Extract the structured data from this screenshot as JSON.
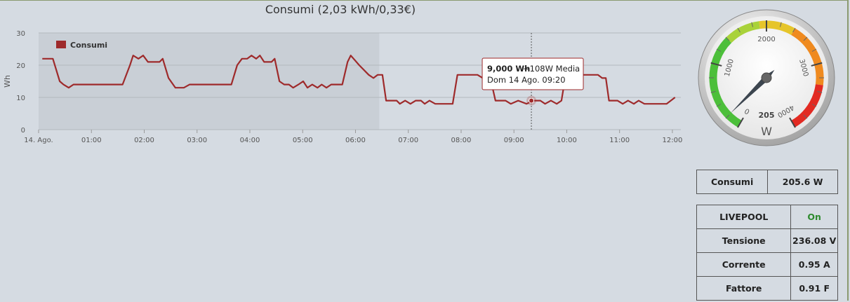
{
  "chart_data": {
    "type": "line",
    "title": "Consumi (2,03 kWh/0,33€)",
    "y_label": "Wh",
    "ylim": [
      0,
      30
    ],
    "yticks": [
      0,
      10,
      20,
      30
    ],
    "grid": true,
    "xlim": [
      0,
      12.2
    ],
    "xticks": [
      {
        "value": 0,
        "label": "14. Ago."
      },
      {
        "value": 1,
        "label": "01:00"
      },
      {
        "value": 2,
        "label": "02:00"
      },
      {
        "value": 3,
        "label": "03:00"
      },
      {
        "value": 4,
        "label": "04:00"
      },
      {
        "value": 5,
        "label": "05:00"
      },
      {
        "value": 6,
        "label": "06:00"
      },
      {
        "value": 7,
        "label": "07:00"
      },
      {
        "value": 8,
        "label": "08:00"
      },
      {
        "value": 9,
        "label": "09:00"
      },
      {
        "value": 10,
        "label": "10:00"
      },
      {
        "value": 11,
        "label": "11:00"
      },
      {
        "value": 12,
        "label": "12:00"
      }
    ],
    "plot_band": [
      0,
      6.45
    ],
    "legend": "top-left",
    "x": [
      0.07,
      0.27,
      0.4,
      0.47,
      0.57,
      0.66,
      1.59,
      1.73,
      1.79,
      1.89,
      1.98,
      2.07,
      2.29,
      2.35,
      2.46,
      2.59,
      2.75,
      2.86,
      3.65,
      3.76,
      3.85,
      3.95,
      4.03,
      4.12,
      4.19,
      4.27,
      4.41,
      4.47,
      4.56,
      4.65,
      4.74,
      4.82,
      4.92,
      5.01,
      5.09,
      5.18,
      5.28,
      5.36,
      5.45,
      5.54,
      5.75,
      5.85,
      5.91,
      6.07,
      6.25,
      6.34,
      6.42,
      6.51,
      6.58,
      6.78,
      6.84,
      6.94,
      7.04,
      7.14,
      7.24,
      7.31,
      7.4,
      7.51,
      7.84,
      7.93,
      8.31,
      8.41,
      8.54,
      8.65,
      8.84,
      8.94,
      9.08,
      9.24,
      9.36,
      9.5,
      9.59,
      9.7,
      9.81,
      9.9,
      9.98,
      10.59,
      10.67,
      10.74,
      10.8,
      10.96,
      11.06,
      11.16,
      11.27,
      11.36,
      11.47,
      11.89,
      12.05
    ],
    "series": [
      {
        "name": "Consumi",
        "color": "#9e2a2b",
        "values": [
          22,
          22,
          15,
          14,
          13,
          14,
          14,
          20,
          23,
          22,
          23,
          21,
          21,
          22,
          16,
          13,
          13,
          14,
          14,
          20,
          22,
          22,
          23,
          22,
          23,
          21,
          21,
          22,
          15,
          14,
          14,
          13,
          14,
          15,
          13,
          14,
          13,
          14,
          13,
          14,
          14,
          21,
          23,
          20,
          17,
          16,
          17,
          17,
          9,
          9,
          8,
          9,
          8,
          9,
          9,
          8,
          9,
          8,
          8,
          17,
          17,
          16,
          17,
          9,
          9,
          8,
          9,
          8,
          9,
          9,
          8,
          9,
          8,
          9,
          17,
          17,
          16,
          16,
          9,
          9,
          8,
          9,
          8,
          9,
          8,
          8,
          10
        ]
      }
    ],
    "tooltip": {
      "x": 9.33,
      "value": 9,
      "value_label": "9,000 Wh",
      "text": "~108W Media",
      "date": "Dom 14 Ago. 09:20"
    }
  },
  "gauge": {
    "lim": [
      0,
      4000
    ],
    "ticks": [
      0,
      1000,
      2000,
      3000,
      4000
    ],
    "value": 205,
    "unit": "W",
    "bands": [
      {
        "from": 0,
        "to": 1400,
        "color": "#4cbf3a"
      },
      {
        "from": 1400,
        "to": 1900,
        "color": "#a9d23a"
      },
      {
        "from": 1900,
        "to": 2400,
        "color": "#e6c52a"
      },
      {
        "from": 2400,
        "to": 3300,
        "color": "#ef8a1f"
      },
      {
        "from": 3300,
        "to": 4000,
        "color": "#e22a22"
      }
    ]
  },
  "table1": {
    "rows": [
      [
        "Consumi",
        "205.6 W"
      ]
    ]
  },
  "table2": {
    "rows": [
      [
        "LIVEPOOL",
        "On"
      ],
      [
        "Tensione",
        "236.08 V"
      ],
      [
        "Corrente",
        "0.95 A"
      ],
      [
        "Fattore",
        "0.91 F"
      ]
    ]
  }
}
